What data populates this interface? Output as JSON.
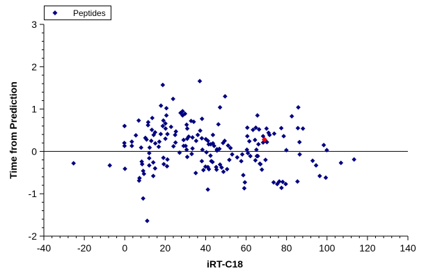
{
  "chart_data": {
    "type": "scatter",
    "xlabel": "iRT-C18",
    "ylabel": "Time from Prediction",
    "xlim": [
      -40,
      140
    ],
    "ylim": [
      -2,
      3
    ],
    "x_ticks": [
      -40,
      -20,
      0,
      20,
      40,
      60,
      80,
      100,
      120,
      140
    ],
    "y_ticks": [
      -2,
      -1,
      0,
      1,
      2,
      3
    ],
    "x_tick_labels": [
      "-40",
      "-20",
      "0",
      "20",
      "40",
      "60",
      "80",
      "100",
      "120",
      "140"
    ],
    "y_tick_labels": [
      "-2",
      "-1",
      "0",
      "1",
      "2",
      "3"
    ],
    "grid": false,
    "reference_line_y": 0,
    "legend": {
      "position": "top-left",
      "entries": [
        "Peptides"
      ]
    },
    "series_color": "#000080",
    "highlight_color": "#ff0000",
    "series": [
      {
        "name": "Peptides",
        "points": [
          [
            -25.3,
            -0.28
          ],
          [
            -7.4,
            -0.33
          ],
          [
            -0.1,
            0.6
          ],
          [
            -0.2,
            0.2
          ],
          [
            -0.1,
            0.13
          ],
          [
            0.1,
            -0.41
          ],
          [
            3.5,
            0.13
          ],
          [
            3.5,
            0.23
          ],
          [
            5.5,
            0.38
          ],
          [
            6.9,
            0.73
          ],
          [
            7.1,
            -0.69
          ],
          [
            7.3,
            -0.63
          ],
          [
            8.1,
            0.09
          ],
          [
            8.4,
            -0.24
          ],
          [
            8.6,
            -0.3
          ],
          [
            9.1,
            -1.11
          ],
          [
            9.1,
            -0.46
          ],
          [
            9.5,
            -0.53
          ],
          [
            10.2,
            0.32
          ],
          [
            10.8,
            0.28
          ],
          [
            11.1,
            -1.64
          ],
          [
            11.5,
            0.62
          ],
          [
            11.6,
            0.69
          ],
          [
            12.1,
            -0.04
          ],
          [
            12.1,
            -0.16
          ],
          [
            12.1,
            -0.33
          ],
          [
            12.3,
            0.09
          ],
          [
            13.1,
            0.25
          ],
          [
            13.4,
            0.51
          ],
          [
            13.6,
            0.79
          ],
          [
            14.1,
            -0.26
          ],
          [
            14.1,
            -0.58
          ],
          [
            14.3,
            0.39
          ],
          [
            15.0,
            -0.4
          ],
          [
            15.0,
            0.45
          ],
          [
            15.1,
            0.19
          ],
          [
            16.8,
            0.11
          ],
          [
            17.1,
            0.23
          ],
          [
            17.8,
            0.41
          ],
          [
            17.9,
            1.08
          ],
          [
            18.8,
            1.57
          ],
          [
            18.8,
            0.6
          ],
          [
            19.1,
            -0.15
          ],
          [
            19.1,
            0.73
          ],
          [
            19.3,
            -0.3
          ],
          [
            20.1,
            0.3
          ],
          [
            20.1,
            0.66
          ],
          [
            20.2,
            0.54
          ],
          [
            20.6,
            0.85
          ],
          [
            20.6,
            1.02
          ],
          [
            20.9,
            -0.35
          ],
          [
            21.1,
            -0.19
          ],
          [
            21.1,
            0.41
          ],
          [
            22.9,
            0.58
          ],
          [
            23.9,
            1.24
          ],
          [
            24.1,
            0.12
          ],
          [
            24.9,
            0.39
          ],
          [
            25.1,
            0.21
          ],
          [
            25.3,
            0.47
          ],
          [
            27.1,
            -0.03
          ],
          [
            27.6,
            0.91
          ],
          [
            28.6,
            0.85
          ],
          [
            28.6,
            0.95
          ],
          [
            29.1,
            0.13
          ],
          [
            29.1,
            0.27
          ],
          [
            29.8,
            0.89
          ],
          [
            30.1,
            0.13
          ],
          [
            30.6,
            0.04
          ],
          [
            30.6,
            0.63
          ],
          [
            30.9,
            -0.13
          ],
          [
            30.9,
            0.3
          ],
          [
            30.9,
            0.54
          ],
          [
            31.6,
            0.35
          ],
          [
            32.8,
            0.72
          ],
          [
            33.1,
            -0.06
          ],
          [
            33.5,
            0.07
          ],
          [
            33.5,
            0.33
          ],
          [
            34.1,
            0.7
          ],
          [
            35.1,
            -0.51
          ],
          [
            35.3,
            0.25
          ],
          [
            36.1,
            0.39
          ],
          [
            37.1,
            1.66
          ],
          [
            37.3,
            0.49
          ],
          [
            38.1,
            -0.23
          ],
          [
            38.1,
            0.31
          ],
          [
            38.2,
            0.77
          ],
          [
            38.4,
            0.04
          ],
          [
            38.9,
            -0.44
          ],
          [
            39.9,
            -0.36
          ],
          [
            40.1,
            0.29
          ],
          [
            40.4,
            -0.02
          ],
          [
            41.1,
            0.25
          ],
          [
            41.1,
            -0.37
          ],
          [
            41.1,
            -0.9
          ],
          [
            41.5,
            0.17
          ],
          [
            41.6,
            -0.42
          ],
          [
            42.4,
            -0.1
          ],
          [
            42.5,
            0.17
          ],
          [
            42.8,
            -0.23
          ],
          [
            43.4,
            -0.25
          ],
          [
            43.6,
            0.19
          ],
          [
            43.6,
            0.39
          ],
          [
            44.2,
            0.13
          ],
          [
            45.2,
            -0.37
          ],
          [
            45.4,
            -0.43
          ],
          [
            45.6,
            0.05
          ],
          [
            45.6,
            0.02
          ],
          [
            46.3,
            0.64
          ],
          [
            46.8,
            0.06
          ],
          [
            47.1,
            1.04
          ],
          [
            47.1,
            -0.31
          ],
          [
            47.9,
            -0.38
          ],
          [
            48.6,
            0.2
          ],
          [
            48.8,
            -0.48
          ],
          [
            49.4,
            0.25
          ],
          [
            49.6,
            1.3
          ],
          [
            50.6,
            -0.42
          ],
          [
            51.1,
            0.14
          ],
          [
            51.7,
            -0.2
          ],
          [
            52.3,
            0.08
          ],
          [
            53.1,
            -0.07
          ],
          [
            55.6,
            -0.14
          ],
          [
            57.6,
            -0.23
          ],
          [
            58.1,
            -0.07
          ],
          [
            58.6,
            -0.56
          ],
          [
            59.1,
            -0.87
          ],
          [
            59.4,
            -0.73
          ],
          [
            60.4,
            0.04
          ],
          [
            60.6,
            0.36
          ],
          [
            60.6,
            0.56
          ],
          [
            60.9,
            -0.04
          ],
          [
            61.6,
            0.24
          ],
          [
            62.1,
            -0.11
          ],
          [
            63.4,
            0.51
          ],
          [
            64.4,
            0.27
          ],
          [
            64.6,
            -0.21
          ],
          [
            64.8,
            0.56
          ],
          [
            65.1,
            0.04
          ],
          [
            65.3,
            -0.11
          ],
          [
            65.6,
            0.85
          ],
          [
            65.8,
            -0.11
          ],
          [
            66.1,
            0.17
          ],
          [
            66.4,
            0.52
          ],
          [
            66.8,
            -0.29
          ],
          [
            67.1,
            -0.3
          ],
          [
            67.8,
            -0.43
          ],
          [
            68.4,
            0.21
          ],
          [
            68.4,
            0.36
          ],
          [
            69.1,
            0.28
          ],
          [
            69.6,
            -0.2
          ],
          [
            70.1,
            0.54
          ],
          [
            70.3,
            0.22
          ],
          [
            71.1,
            0.44
          ],
          [
            71.6,
            0.39
          ],
          [
            73.6,
            -0.73
          ],
          [
            73.9,
            0.42
          ],
          [
            75.4,
            -0.77
          ],
          [
            76.4,
            -0.71
          ],
          [
            77.4,
            0.55
          ],
          [
            77.5,
            -0.86
          ],
          [
            78.1,
            -0.72
          ],
          [
            78.6,
            0.36
          ],
          [
            79.6,
            -0.77
          ],
          [
            79.9,
            0.03
          ],
          [
            82.6,
            0.83
          ],
          [
            85.4,
            -0.71
          ],
          [
            85.6,
            0.55
          ],
          [
            85.8,
            1.04
          ],
          [
            86.4,
            0.22
          ],
          [
            86.5,
            -0.07
          ],
          [
            88.1,
            0.54
          ],
          [
            92.9,
            -0.22
          ],
          [
            94.6,
            -0.33
          ],
          [
            96.4,
            -0.58
          ],
          [
            98.4,
            0.15
          ],
          [
            99.4,
            -0.62
          ],
          [
            99.9,
            0.03
          ],
          [
            106.9,
            -0.27
          ],
          [
            113.4,
            -0.19
          ]
        ]
      }
    ],
    "highlight_point": [
      69.1,
      0.28
    ]
  }
}
